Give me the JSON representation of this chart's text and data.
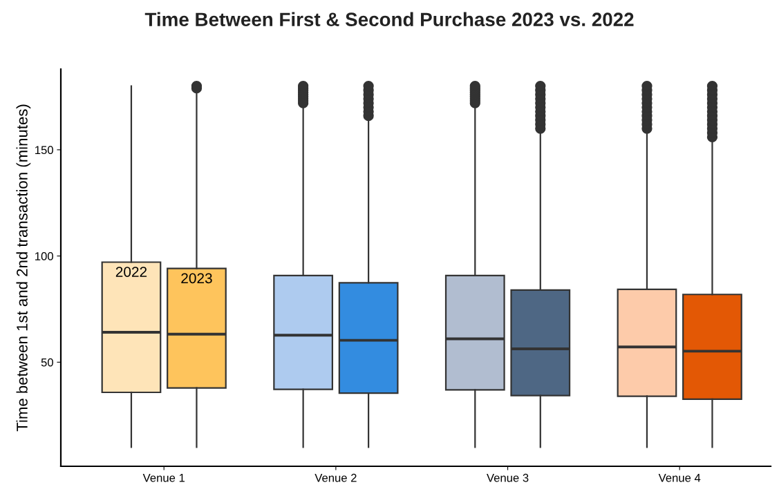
{
  "chart_data": {
    "type": "box",
    "title": "Time Between First & Second Purchase 2023 vs. 2022",
    "ylabel": "Time between 1st and 2nd transaction (minutes)",
    "categories": [
      "Venue 1",
      "Venue 2",
      "Venue 3",
      "Venue 4"
    ],
    "ylim": [
      1,
      188
    ],
    "yticks": [
      50,
      100,
      150
    ],
    "series": [
      {
        "name": "2022",
        "colors": [
          "#fee4b8",
          "#aecbef",
          "#b1bdd0",
          "#fdcbaa"
        ],
        "boxes": [
          {
            "low": 10,
            "q1": 35.8,
            "median": 64.1,
            "q3": 97.1,
            "high": 180
          },
          {
            "low": 10,
            "q1": 37.2,
            "median": 62.7,
            "q3": 90.8,
            "high": 171,
            "outliers": [
              172,
              173,
              174,
              175,
              176,
              177,
              178,
              179,
              180
            ]
          },
          {
            "low": 10,
            "q1": 37,
            "median": 61,
            "q3": 90.8,
            "high": 171,
            "outliers": [
              172,
              173,
              174,
              175,
              176,
              177,
              178,
              179,
              180
            ]
          },
          {
            "low": 10,
            "q1": 34,
            "median": 57.2,
            "q3": 84.3,
            "high": 159,
            "outliers": [
              160,
              162,
              164,
              166,
              168,
              170,
              172,
              174,
              176,
              178,
              180
            ]
          }
        ]
      },
      {
        "name": "2023",
        "colors": [
          "#fec45c",
          "#338ce0",
          "#4e6784",
          "#e35805"
        ],
        "boxes": [
          {
            "low": 10,
            "q1": 37.9,
            "median": 63.2,
            "q3": 94.1,
            "high": 178,
            "outliers": [
              179,
              180
            ]
          },
          {
            "low": 10,
            "q1": 35.4,
            "median": 60.3,
            "q3": 87.4,
            "high": 165,
            "outliers": [
              166,
              168,
              170,
              172,
              174,
              176,
              178,
              180
            ]
          },
          {
            "low": 10,
            "q1": 34.3,
            "median": 56.3,
            "q3": 84,
            "high": 159,
            "outliers": [
              160,
              162,
              164,
              166,
              168,
              170,
              172,
              174,
              176,
              178,
              180
            ]
          },
          {
            "low": 10,
            "q1": 32.6,
            "median": 55.2,
            "q3": 81.9,
            "high": 155,
            "outliers": [
              156,
              158,
              160,
              162,
              164,
              166,
              168,
              170,
              172,
              174,
              176,
              178,
              180
            ]
          }
        ]
      }
    ]
  }
}
